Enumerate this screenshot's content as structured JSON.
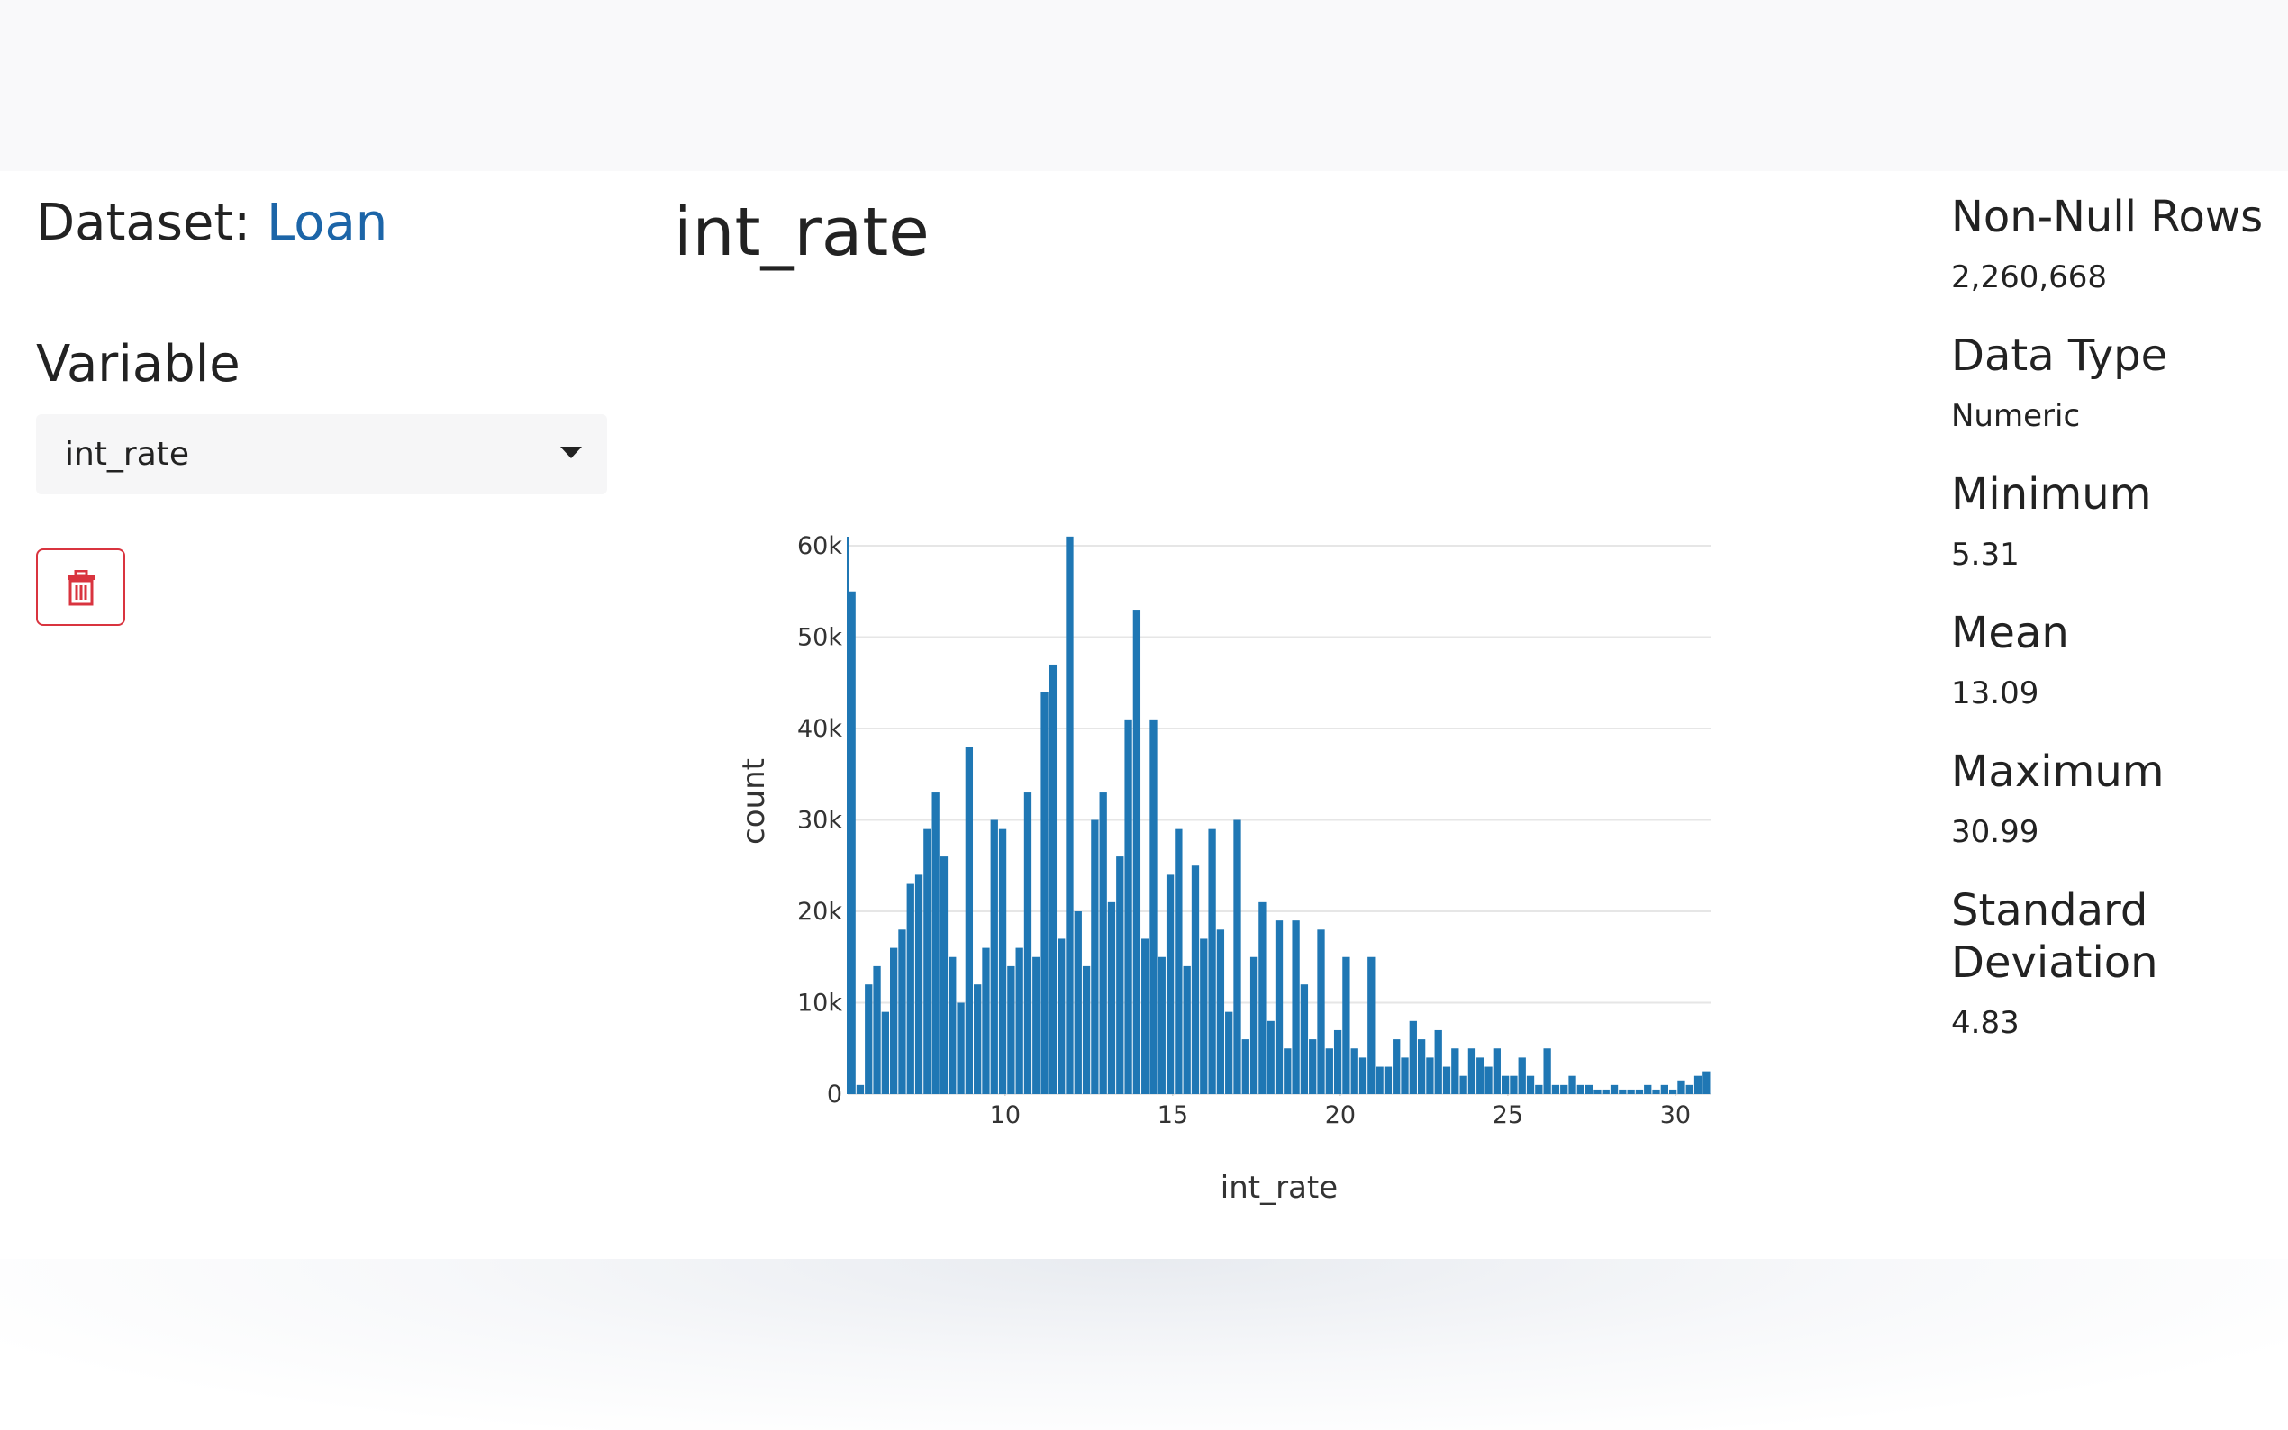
{
  "sidebar": {
    "dataset_label": "Dataset:",
    "dataset_name": "Loan",
    "variable_label": "Variable",
    "selected_variable": "int_rate"
  },
  "chart_data": {
    "type": "histogram",
    "title": "int_rate",
    "x_label": "int_rate",
    "y_label": "count",
    "color": "#1f77b4",
    "grid": true,
    "bins": [
      5.3,
      5.55,
      5.8,
      6.05,
      6.3,
      6.55,
      6.8,
      7.05,
      7.3,
      7.55,
      7.8,
      8.05,
      8.3,
      8.55,
      8.8,
      9.05,
      9.3,
      9.55,
      9.8,
      10.05,
      10.3,
      10.55,
      10.8,
      11.05,
      11.3,
      11.55,
      11.8,
      12.05,
      12.3,
      12.55,
      12.8,
      13.05,
      13.3,
      13.55,
      13.8,
      14.05,
      14.3,
      14.55,
      14.8,
      15.05,
      15.3,
      15.55,
      15.8,
      16.05,
      16.3,
      16.55,
      16.8,
      17.05,
      17.3,
      17.55,
      17.8,
      18.05,
      18.3,
      18.55,
      18.8,
      19.05,
      19.3,
      19.55,
      19.8,
      20.05,
      20.3,
      20.55,
      20.8,
      21.05,
      21.3,
      21.55,
      21.8,
      22.05,
      22.3,
      22.55,
      22.8,
      23.05,
      23.3,
      23.55,
      23.8,
      24.05,
      24.3,
      24.55,
      24.8,
      25.05,
      25.3,
      25.55,
      25.8,
      26.05,
      26.3,
      26.55,
      26.8,
      27.05,
      27.3,
      27.55,
      27.8,
      28.05,
      28.3,
      28.55,
      28.8,
      29.05,
      29.3,
      29.55,
      29.8,
      30.05,
      30.3,
      30.55,
      30.8,
      31.05
    ],
    "values": [
      55000,
      1000,
      12000,
      14000,
      9000,
      16000,
      18000,
      23000,
      24000,
      29000,
      33000,
      26000,
      15000,
      10000,
      38000,
      12000,
      16000,
      30000,
      29000,
      14000,
      16000,
      33000,
      15000,
      44000,
      47000,
      17000,
      61000,
      20000,
      14000,
      30000,
      33000,
      21000,
      26000,
      41000,
      53000,
      17000,
      41000,
      15000,
      24000,
      29000,
      14000,
      25000,
      17000,
      29000,
      18000,
      9000,
      30000,
      6000,
      15000,
      21000,
      8000,
      19000,
      5000,
      19000,
      12000,
      6000,
      18000,
      5000,
      7000,
      15000,
      5000,
      4000,
      15000,
      3000,
      3000,
      6000,
      4000,
      8000,
      6000,
      4000,
      7000,
      3000,
      5000,
      2000,
      5000,
      4000,
      3000,
      5000,
      2000,
      2000,
      4000,
      2000,
      1000,
      5000,
      1000,
      1000,
      2000,
      1000,
      1000,
      500,
      500,
      1000,
      500,
      500,
      500,
      1000,
      500,
      1000,
      500,
      1500,
      1000,
      2000,
      2500
    ],
    "xlim": [
      5.3,
      31.05
    ],
    "xticks": [
      10,
      15,
      20,
      25,
      30
    ],
    "ylim": [
      0,
      60000
    ],
    "yticks": [
      0,
      {
        "value": 10000,
        "label": "10k"
      },
      {
        "value": 20000,
        "label": "20k"
      },
      {
        "value": 30000,
        "label": "30k"
      },
      {
        "value": 40000,
        "label": "40k"
      },
      {
        "value": 50000,
        "label": "50k"
      },
      {
        "value": 60000,
        "label": "60k"
      }
    ]
  },
  "stats": [
    {
      "label": "Non-Null Rows",
      "value": "2,260,668"
    },
    {
      "label": "Data Type",
      "value": "Numeric"
    },
    {
      "label": "Minimum",
      "value": "5.31"
    },
    {
      "label": "Mean",
      "value": "13.09"
    },
    {
      "label": "Maximum",
      "value": "30.99"
    },
    {
      "label": "Standard Deviation",
      "value": "4.83"
    }
  ]
}
